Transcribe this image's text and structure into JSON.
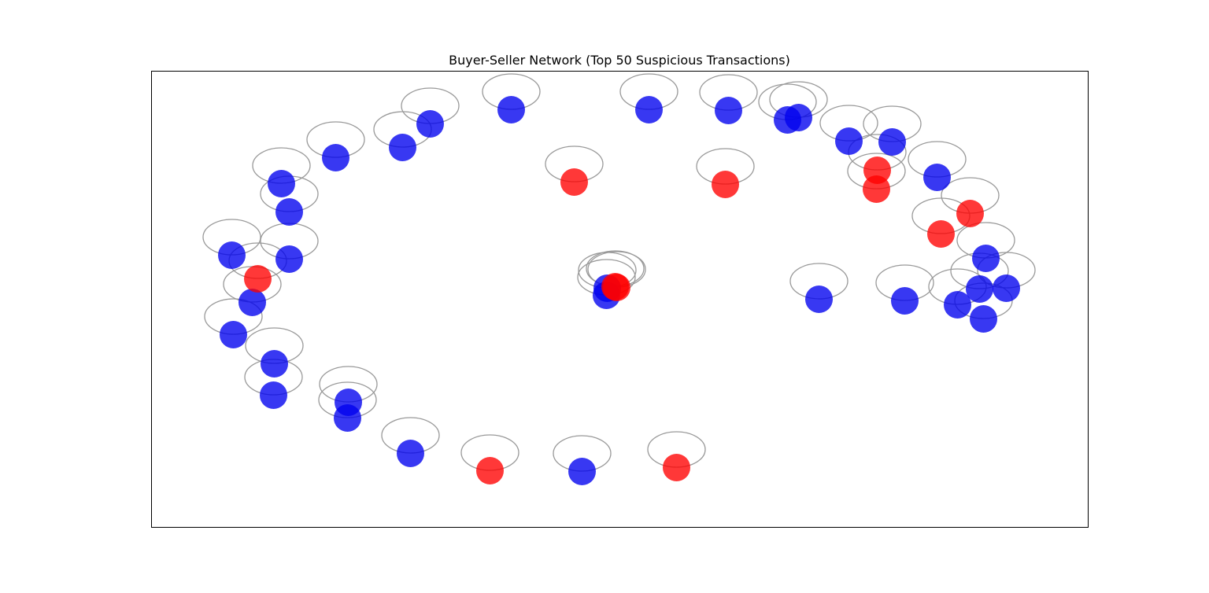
{
  "chart_data": {
    "type": "scatter",
    "title": "Buyer-Seller Network (Top 50 Suspicious Transactions)",
    "xlabel": "",
    "ylabel": "",
    "axes_visible": false,
    "grid": false,
    "legend": "none",
    "x_range": [
      0,
      1190
    ],
    "y_range": [
      0,
      580
    ],
    "colors": {
      "buyer": "#0000ee",
      "seller": "#ff0000",
      "loop_edge": "#999999",
      "frame": "#000000"
    },
    "series": [
      {
        "color_key": "buyer",
        "points": [
          [
            547,
            509
          ],
          [
            329,
            486
          ],
          [
            249,
            441
          ],
          [
            155,
            412
          ],
          [
            250,
            421
          ],
          [
            156,
            372
          ],
          [
            104,
            335
          ],
          [
            128,
            294
          ],
          [
            102,
            234
          ],
          [
            175,
            239
          ],
          [
            175,
            179
          ],
          [
            165,
            143
          ],
          [
            234,
            110
          ],
          [
            319,
            97
          ],
          [
            354,
            67
          ],
          [
            457,
            49
          ],
          [
            632,
            49
          ],
          [
            808,
            62
          ],
          [
            848,
            290
          ],
          [
            957,
            292
          ],
          [
            1024,
            297
          ],
          [
            1052,
            277
          ],
          [
            1057,
            315
          ],
          [
            1086,
            276
          ],
          [
            1060,
            238
          ],
          [
            998,
            135
          ],
          [
            941,
            90
          ],
          [
            886,
            89
          ],
          [
            822,
            59
          ],
          [
            733,
            50
          ],
          [
            578,
            285
          ],
          [
            579,
            276
          ]
        ]
      },
      {
        "color_key": "seller",
        "points": [
          [
            430,
            508
          ],
          [
            667,
            504
          ],
          [
            537,
            141
          ],
          [
            921,
            150
          ],
          [
            1003,
            207
          ],
          [
            1040,
            181
          ],
          [
            135,
            264
          ],
          [
            729,
            144
          ],
          [
            922,
            126
          ],
          [
            589,
            274
          ],
          [
            591,
            275
          ]
        ]
      }
    ]
  }
}
